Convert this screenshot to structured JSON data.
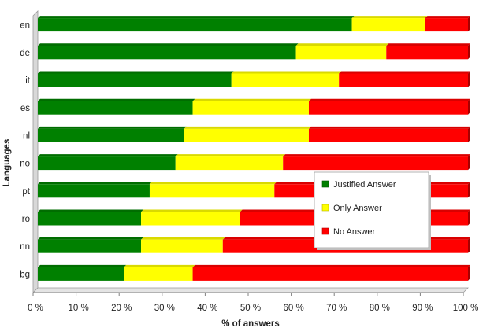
{
  "chart_data": {
    "type": "bar",
    "orientation": "horizontal",
    "stacked": "percent",
    "categories": [
      "en",
      "de",
      "it",
      "es",
      "nl",
      "no",
      "pt",
      "ro",
      "nn",
      "bg"
    ],
    "series": [
      {
        "name": "Justified Answer",
        "color": "#008000",
        "values": [
          73,
          60,
          45,
          36,
          34,
          32,
          26,
          24,
          24,
          20
        ]
      },
      {
        "name": "Only Answer",
        "color": "#ffff00",
        "values": [
          17,
          21,
          25,
          27,
          29,
          25,
          29,
          23,
          19,
          16
        ]
      },
      {
        "name": "No Answer",
        "color": "#ff0000",
        "values": [
          10,
          19,
          30,
          37,
          37,
          43,
          45,
          53,
          57,
          64
        ]
      }
    ],
    "xlabel": "% of answers",
    "ylabel": "Languages",
    "xlim": [
      0,
      100
    ],
    "xticks": [
      "0 %",
      "10 %",
      "20 %",
      "30 %",
      "40 %",
      "50 %",
      "60 %",
      "70 %",
      "80 %",
      "90 %",
      "100 %"
    ],
    "legend_position": "right",
    "grid": false
  }
}
